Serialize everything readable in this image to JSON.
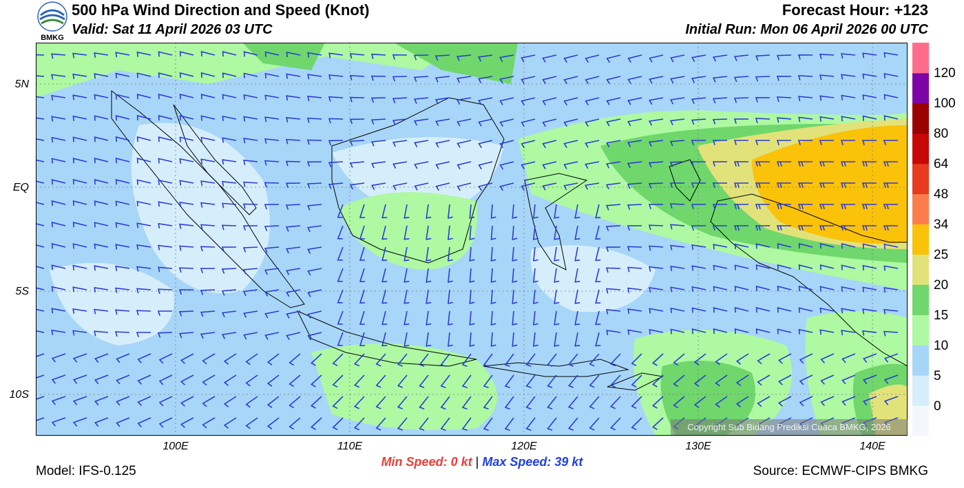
{
  "header": {
    "title": "500 hPa Wind Direction and Speed (Knot)",
    "valid": "Valid: Sat 11 April 2026 03 UTC",
    "forecast_hour": "Forecast Hour: +123",
    "initial_run": "Initial Run: Mon 06 April 2026 00 UTC"
  },
  "logo": {
    "text": "BMKG",
    "icon": "bmkg-logo-icon"
  },
  "map": {
    "lon_range": [
      92,
      142
    ],
    "lat_range": [
      -12,
      7
    ],
    "lat_labels": [
      {
        "lat": 5,
        "text": "5N"
      },
      {
        "lat": 0,
        "text": "EQ"
      },
      {
        "lat": -5,
        "text": "5S"
      },
      {
        "lat": -10,
        "text": "10S"
      }
    ],
    "lon_labels": [
      {
        "lon": 100,
        "text": "100E"
      },
      {
        "lon": 110,
        "text": "110E"
      },
      {
        "lon": 120,
        "text": "120E"
      },
      {
        "lon": 130,
        "text": "130E"
      },
      {
        "lon": 140,
        "text": "140E"
      }
    ],
    "wind_barb_color": "#2b3bd6",
    "coastline_color": "#000000"
  },
  "colorbar": {
    "colors": [
      "#f4f8fd",
      "#d6eefb",
      "#a8d6f8",
      "#aef9a2",
      "#6fd76b",
      "#e2e27a",
      "#fbc20a",
      "#fb7d4b",
      "#e83a1f",
      "#c80707",
      "#9a0101",
      "#7e03a6",
      "#fe6e8c"
    ],
    "labels": [
      "0",
      "5",
      "10",
      "15",
      "20",
      "25",
      "34",
      "48",
      "64",
      "80",
      "100",
      "120"
    ]
  },
  "stats": {
    "min_label": "Min Speed:",
    "min_value": "0 kt",
    "separator": "|",
    "max_label": "Max Speed:",
    "max_value": "39 kt"
  },
  "footer": {
    "model": "Model: IFS-0.125",
    "source": "Source: ECMWF-CIPS BMKG",
    "copyright": "Copyright Sub Bidang Prediksi Cuaca BMKG, 2026"
  }
}
